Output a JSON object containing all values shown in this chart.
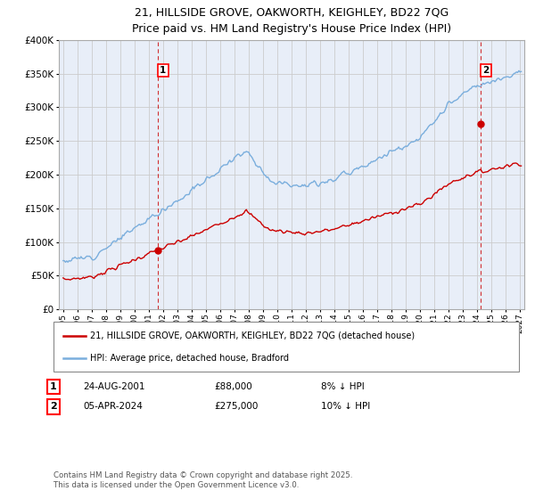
{
  "title_line1": "21, HILLSIDE GROVE, OAKWORTH, KEIGHLEY, BD22 7QG",
  "title_line2": "Price paid vs. HM Land Registry's House Price Index (HPI)",
  "background_color": "#ffffff",
  "grid_color": "#cccccc",
  "plot_bg_color": "#e8eef8",
  "red_color": "#cc0000",
  "blue_color": "#7aaedd",
  "marker1_year": 2001.65,
  "marker1_price": 88000,
  "marker2_year": 2024.27,
  "marker2_price": 275000,
  "marker1_date_label": "24-AUG-2001",
  "marker1_price_label": "£88,000",
  "marker1_hpi_label": "8% ↓ HPI",
  "marker2_date_label": "05-APR-2024",
  "marker2_price_label": "£275,000",
  "marker2_hpi_label": "10% ↓ HPI",
  "legend_line1": "21, HILLSIDE GROVE, OAKWORTH, KEIGHLEY, BD22 7QG (detached house)",
  "legend_line2": "HPI: Average price, detached house, Bradford",
  "footer_line1": "Contains HM Land Registry data © Crown copyright and database right 2025.",
  "footer_line2": "This data is licensed under the Open Government Licence v3.0.",
  "ylim_min": 0,
  "ylim_max": 400000,
  "xlim_min": 1994.7,
  "xlim_max": 2027.3
}
